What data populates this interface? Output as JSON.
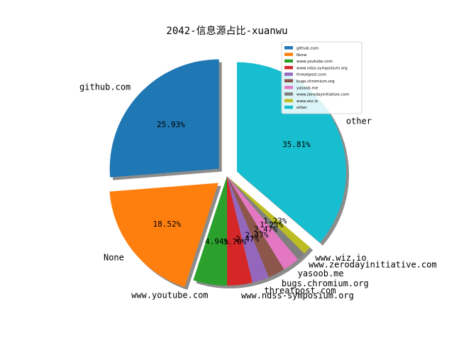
{
  "chart_data": {
    "type": "pie",
    "title": "2042-信息源占比-xuanwu",
    "labels": [
      "github.com",
      "None",
      "www.youtube.com",
      "www.ndss-symposium.org",
      "threatpost.com",
      "bugs.chromium.org",
      "yasoob.me",
      "www.zerodayinitiative.com",
      "www.wiz.io",
      "other"
    ],
    "values": [
      25.93,
      18.52,
      4.94,
      3.7,
      2.47,
      2.47,
      2.47,
      1.23,
      1.23,
      35.81
    ],
    "percent_labels": [
      "25.93%",
      "18.52%",
      "4.94%",
      "3.70%",
      "2.47%",
      "2.47%",
      "2.47%",
      "1.23%",
      "1.23%",
      "35.81%"
    ],
    "colors": [
      "#1f77b4",
      "#ff7f0e",
      "#2ca02c",
      "#d62728",
      "#9467bd",
      "#8c564b",
      "#e377c2",
      "#7f7f7f",
      "#bcbd22",
      "#17becf",
      "#1f77b4"
    ],
    "legend": {
      "placement": "upper-right",
      "entries": [
        "github.com",
        "None",
        "www.youtube.com",
        "www.ndss-symposium.org",
        "threatpost.com",
        "bugs.chromium.org",
        "yasoob.me",
        "www.zerodayinitiative.com",
        "www.wiz.io",
        "other"
      ]
    },
    "shadow": true
  }
}
